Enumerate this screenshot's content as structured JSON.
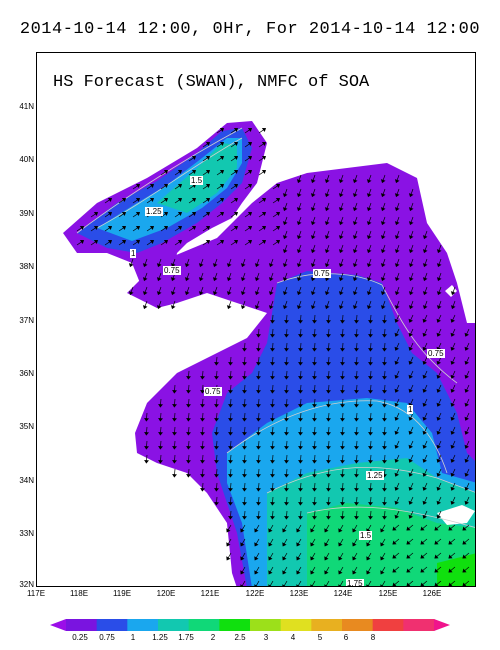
{
  "title": "2014-10-14 12:00, 0Hr, For 2014-10-14 12:00",
  "panel_title": "HS Forecast (SWAN), NMFC of SOA",
  "y_axis": {
    "labels": [
      "41N",
      "40N",
      "39N",
      "38N",
      "37N",
      "36N",
      "35N",
      "34N",
      "33N",
      "32N"
    ]
  },
  "x_axis": {
    "labels": [
      "117E",
      "118E",
      "119E",
      "120E",
      "121E",
      "122E",
      "123E",
      "124E",
      "125E",
      "126E"
    ]
  },
  "contour_labels": [
    "1.5",
    "1.25",
    "1",
    "0.75",
    "0.75",
    "0.75",
    "0.75",
    "1",
    "1.25",
    "1.5",
    "1.75"
  ],
  "colorbar": {
    "labels": [
      "0.25",
      "0.75",
      "1",
      "1.25",
      "1.75",
      "2",
      "2.5",
      "3",
      "4",
      "5",
      "6",
      "8"
    ],
    "colors": [
      "#9b0ee8",
      "#7a14e0",
      "#2a4de8",
      "#1aa7ee",
      "#12c8b0",
      "#10d878",
      "#10e00e",
      "#9ce01a",
      "#e0e020",
      "#e8b020",
      "#e88a20",
      "#f04040",
      "#f03070",
      "#f0148c"
    ]
  }
}
